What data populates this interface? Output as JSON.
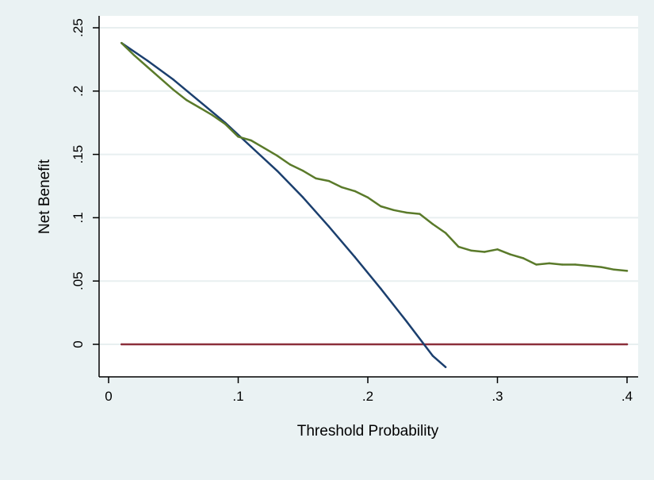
{
  "chart_data": {
    "type": "line",
    "title": "",
    "xlabel": "Threshold Probability",
    "ylabel": "Net Benefit",
    "xlim": [
      0,
      0.4
    ],
    "ylim": [
      -0.025,
      0.25
    ],
    "xticks": [
      {
        "value": 0,
        "label": "0"
      },
      {
        "value": 0.1,
        "label": ".1"
      },
      {
        "value": 0.2,
        "label": ".2"
      },
      {
        "value": 0.3,
        "label": ".3"
      },
      {
        "value": 0.4,
        "label": ".4"
      }
    ],
    "yticks": [
      {
        "value": 0,
        "label": "0"
      },
      {
        "value": 0.05,
        "label": ".05"
      },
      {
        "value": 0.1,
        "label": ".1"
      },
      {
        "value": 0.15,
        "label": ".15"
      },
      {
        "value": 0.2,
        "label": ".2"
      },
      {
        "value": 0.25,
        "label": ".25"
      }
    ],
    "grid": "horizontal",
    "legend": "none",
    "series": [
      {
        "color": "#5a7a2a",
        "x": [
          0.01,
          0.02,
          0.03,
          0.04,
          0.05,
          0.06,
          0.07,
          0.08,
          0.09,
          0.1,
          0.11,
          0.12,
          0.13,
          0.14,
          0.15,
          0.16,
          0.17,
          0.18,
          0.19,
          0.2,
          0.21,
          0.22,
          0.23,
          0.24,
          0.25,
          0.26,
          0.27,
          0.28,
          0.29,
          0.3,
          0.31,
          0.32,
          0.33,
          0.34,
          0.35,
          0.36,
          0.37,
          0.38,
          0.39,
          0.4
        ],
        "y": [
          0.238,
          0.228,
          0.219,
          0.21,
          0.201,
          0.193,
          0.187,
          0.181,
          0.174,
          0.164,
          0.161,
          0.155,
          0.149,
          0.142,
          0.137,
          0.131,
          0.129,
          0.124,
          0.121,
          0.116,
          0.109,
          0.106,
          0.104,
          0.103,
          0.095,
          0.088,
          0.077,
          0.074,
          0.073,
          0.075,
          0.071,
          0.068,
          0.063,
          0.064,
          0.063,
          0.063,
          0.062,
          0.061,
          0.059,
          0.058
        ]
      },
      {
        "color": "#1b3f6e",
        "x": [
          0.01,
          0.03,
          0.05,
          0.07,
          0.09,
          0.11,
          0.13,
          0.15,
          0.17,
          0.19,
          0.21,
          0.23,
          0.25,
          0.26
        ],
        "y": [
          0.238,
          0.224,
          0.209,
          0.192,
          0.175,
          0.156,
          0.137,
          0.116,
          0.093,
          0.069,
          0.044,
          0.018,
          -0.009,
          -0.018
        ]
      },
      {
        "color": "#8b2f3a",
        "x": [
          0.01,
          0.4
        ],
        "y": [
          0,
          0
        ]
      }
    ]
  }
}
